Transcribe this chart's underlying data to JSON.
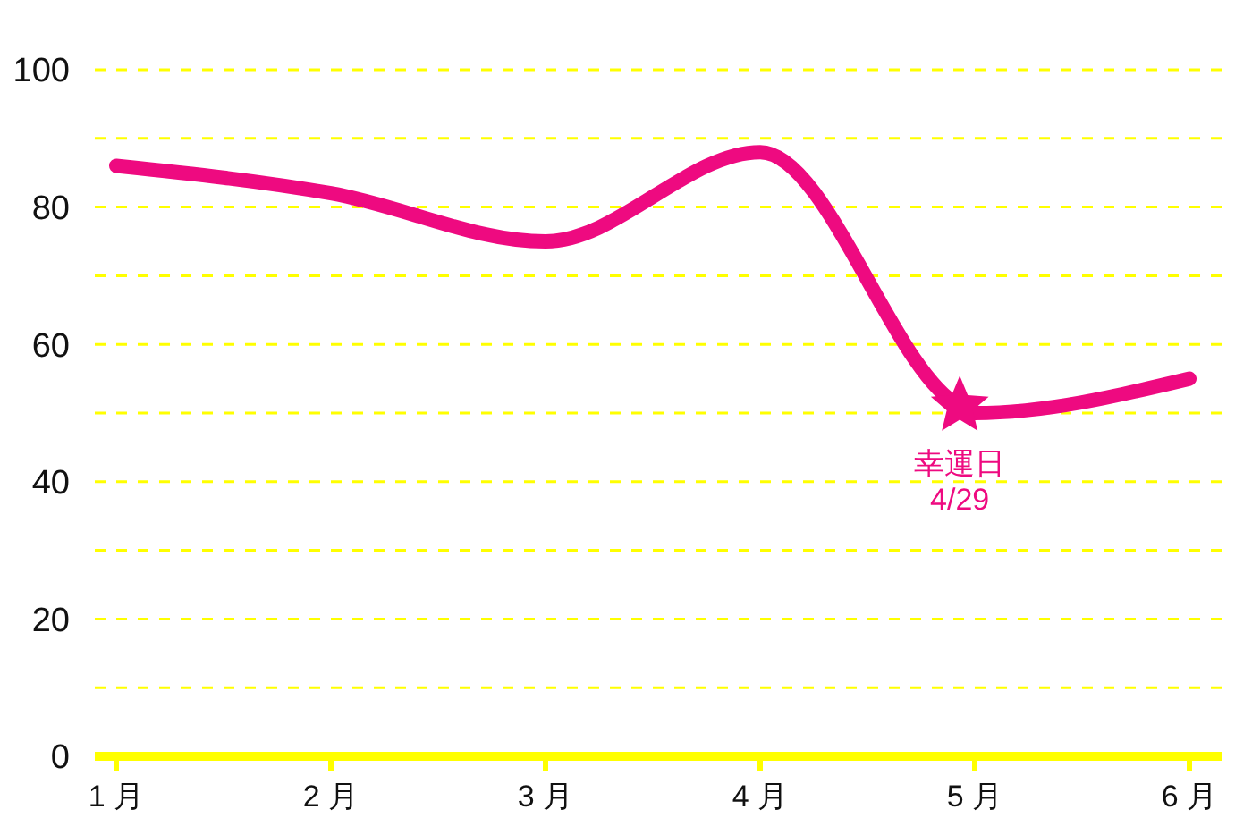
{
  "chart_data": {
    "type": "line",
    "x": [
      1,
      2,
      3,
      4,
      4.93,
      5,
      6
    ],
    "series": [
      {
        "color": "#ee0a80",
        "values": [
          86,
          82,
          75,
          88,
          51,
          50,
          55
        ]
      },
      {
        "type": "scatter",
        "marker": "star",
        "color": "#ee0a80",
        "x": [
          4.93
        ],
        "values": [
          51
        ]
      }
    ],
    "xlim": [
      0.9,
      6.15
    ],
    "xticks": [
      {
        "value": 1,
        "label": "1 月"
      },
      {
        "value": 2,
        "label": "2 月"
      },
      {
        "value": 3,
        "label": "3 月"
      },
      {
        "value": 4,
        "label": "4 月"
      },
      {
        "value": 5,
        "label": "5 月"
      },
      {
        "value": 6,
        "label": "6 月"
      }
    ],
    "ylim": [
      0,
      100
    ],
    "yticks": [
      0,
      {
        "value": 10,
        "label": null
      },
      20,
      {
        "value": 30,
        "label": null
      },
      40,
      {
        "value": 50,
        "label": null
      },
      60,
      {
        "value": 70,
        "label": null
      },
      80,
      {
        "value": 90,
        "label": null
      },
      100
    ],
    "grid": "y",
    "marker": "none",
    "line_style": "solid",
    "annotations": [
      {
        "text": "幸運日",
        "x": 4.93,
        "y": 51
      },
      {
        "text": "4/29",
        "x": 4.93,
        "y": 51
      }
    ]
  }
}
